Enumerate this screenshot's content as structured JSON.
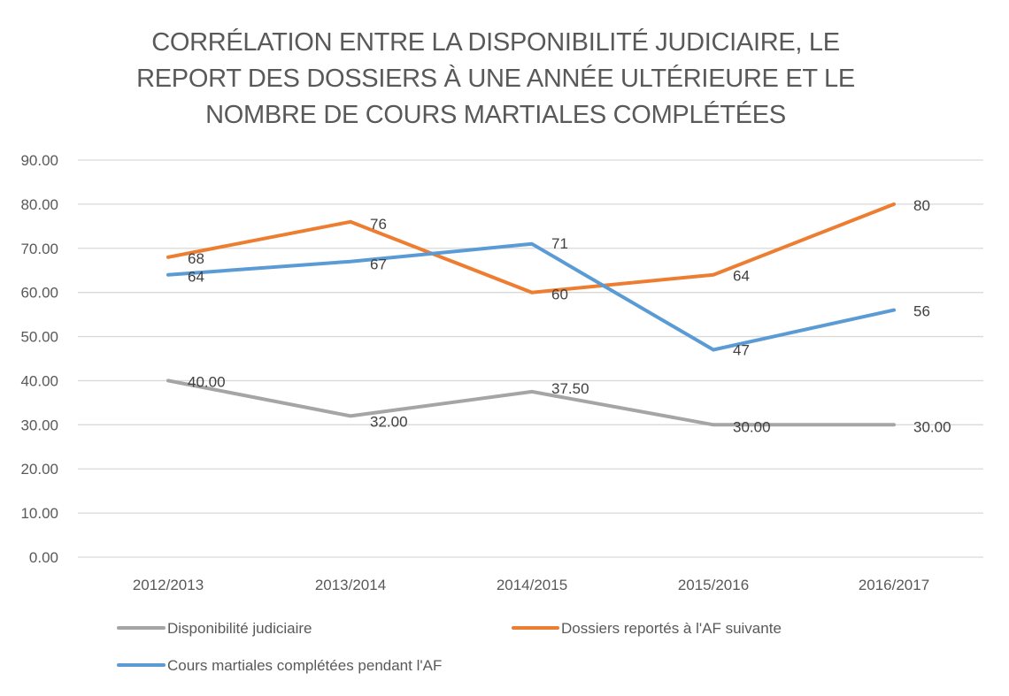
{
  "chart_data": {
    "type": "line",
    "title": "CORRÉLATION  ENTRE LA DISPONIBILITÉ JUDICIAIRE,  LE REPORT  DES DOSSIERS À UNE ANNÉE ULTÉRIEURE  ET LE NOMBRE DE COURS MARTIALES COMPLÉTÉES",
    "title_lines": [
      "CORRÉLATION  ENTRE LA DISPONIBILITÉ JUDICIAIRE,  LE",
      "REPORT  DES DOSSIERS À UNE ANNÉE ULTÉRIEURE  ET LE",
      "NOMBRE DE COURS MARTIALES COMPLÉTÉES"
    ],
    "xlabel": "",
    "ylabel": "",
    "categories": [
      "2012/2013",
      "2013/2014",
      "2014/2015",
      "2015/2016",
      "2016/2017"
    ],
    "ylim": [
      0,
      90
    ],
    "yticks": [
      0,
      10,
      20,
      30,
      40,
      50,
      60,
      70,
      80,
      90
    ],
    "ytick_labels": [
      "0.00",
      "10.00",
      "20.00",
      "30.00",
      "40.00",
      "50.00",
      "60.00",
      "70.00",
      "80.00",
      "90.00"
    ],
    "grid": true,
    "legend_position": "bottom",
    "series": [
      {
        "name": "Disponibilité judiciaire",
        "color": "#A5A5A5",
        "values": [
          40,
          32,
          37.5,
          30,
          30
        ],
        "labels": [
          "40.00",
          "32.00",
          "37.50",
          "30.00",
          "30.00"
        ]
      },
      {
        "name": "Dossiers reportés à l'AF suivante",
        "color": "#ED7D31",
        "values": [
          68,
          76,
          60,
          64,
          80
        ],
        "labels": [
          "68",
          "76",
          "60",
          "64",
          "80"
        ]
      },
      {
        "name": "Cours martiales complétées pendant l'AF",
        "color": "#5B9BD5",
        "values": [
          64,
          67,
          71,
          47,
          56
        ],
        "labels": [
          "64",
          "67",
          "71",
          "47",
          "56"
        ]
      }
    ]
  }
}
